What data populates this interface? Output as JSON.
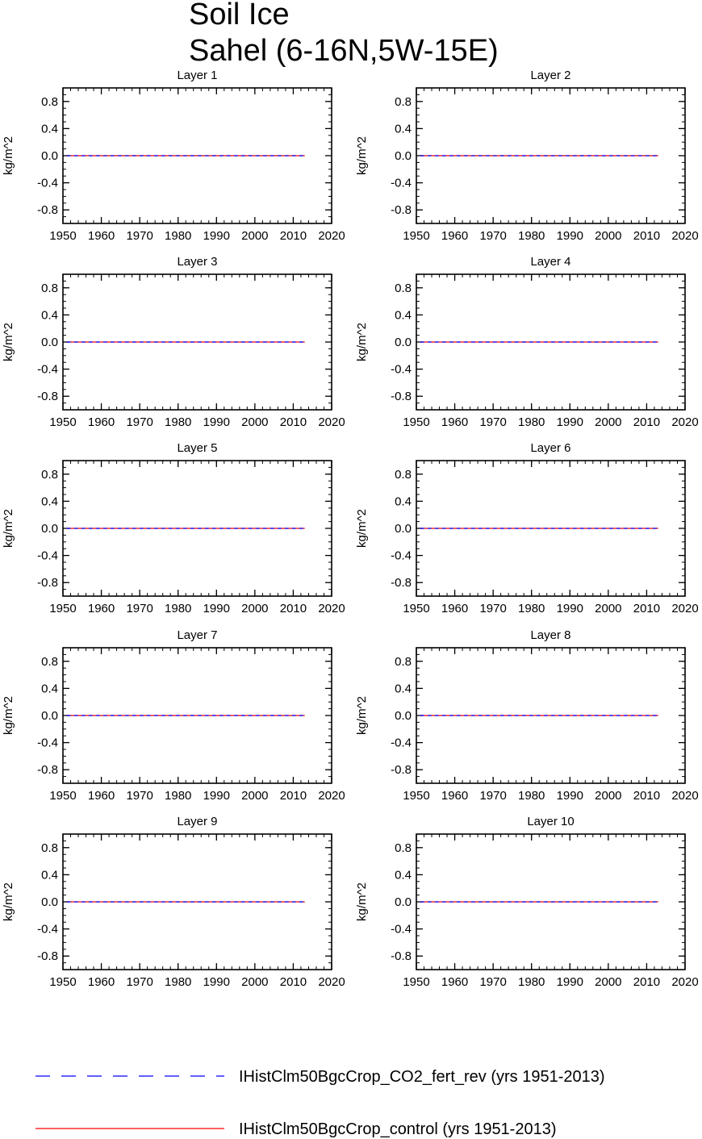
{
  "figure": {
    "title_lines": [
      "Soil Ice",
      "Sahel (6-16N,5W-15E)"
    ]
  },
  "chart_data": [
    {
      "type": "line",
      "title": "Layer 1",
      "xlabel": "",
      "ylabel": "kg/m^2",
      "xlim": [
        1950,
        2020
      ],
      "ylim": [
        -1,
        1
      ],
      "xticks": [
        1950,
        1960,
        1970,
        1980,
        1990,
        2000,
        2010,
        2020
      ],
      "yticks": [
        0.8,
        0.4,
        0.0,
        -0.4,
        -0.8
      ],
      "series": [
        {
          "name": "IHistClm50BgcCrop_CO2_fert_rev (yrs 1951-2013)",
          "color": "#0000ff",
          "style": "dashed",
          "x": [
            1951,
            2013
          ],
          "y": [
            0,
            0
          ]
        },
        {
          "name": "IHistClm50BgcCrop_control (yrs 1951-2013)",
          "color": "#ff0000",
          "style": "solid",
          "x": [
            1951,
            2013
          ],
          "y": [
            0,
            0
          ]
        }
      ]
    },
    {
      "type": "line",
      "title": "Layer 2",
      "xlabel": "",
      "ylabel": "kg/m^2",
      "xlim": [
        1950,
        2020
      ],
      "ylim": [
        -1,
        1
      ],
      "xticks": [
        1950,
        1960,
        1970,
        1980,
        1990,
        2000,
        2010,
        2020
      ],
      "yticks": [
        0.8,
        0.4,
        0.0,
        -0.4,
        -0.8
      ],
      "series": [
        {
          "name": "IHistClm50BgcCrop_CO2_fert_rev (yrs 1951-2013)",
          "color": "#0000ff",
          "style": "dashed",
          "x": [
            1951,
            2013
          ],
          "y": [
            0,
            0
          ]
        },
        {
          "name": "IHistClm50BgcCrop_control (yrs 1951-2013)",
          "color": "#ff0000",
          "style": "solid",
          "x": [
            1951,
            2013
          ],
          "y": [
            0,
            0
          ]
        }
      ]
    },
    {
      "type": "line",
      "title": "Layer 3",
      "xlabel": "",
      "ylabel": "kg/m^2",
      "xlim": [
        1950,
        2020
      ],
      "ylim": [
        -1,
        1
      ],
      "xticks": [
        1950,
        1960,
        1970,
        1980,
        1990,
        2000,
        2010,
        2020
      ],
      "yticks": [
        0.8,
        0.4,
        0.0,
        -0.4,
        -0.8
      ],
      "series": [
        {
          "name": "IHistClm50BgcCrop_CO2_fert_rev (yrs 1951-2013)",
          "color": "#0000ff",
          "style": "dashed",
          "x": [
            1951,
            2013
          ],
          "y": [
            0,
            0
          ]
        },
        {
          "name": "IHistClm50BgcCrop_control (yrs 1951-2013)",
          "color": "#ff0000",
          "style": "solid",
          "x": [
            1951,
            2013
          ],
          "y": [
            0,
            0
          ]
        }
      ]
    },
    {
      "type": "line",
      "title": "Layer 4",
      "xlabel": "",
      "ylabel": "kg/m^2",
      "xlim": [
        1950,
        2020
      ],
      "ylim": [
        -1,
        1
      ],
      "xticks": [
        1950,
        1960,
        1970,
        1980,
        1990,
        2000,
        2010,
        2020
      ],
      "yticks": [
        0.8,
        0.4,
        0.0,
        -0.4,
        -0.8
      ],
      "series": [
        {
          "name": "IHistClm50BgcCrop_CO2_fert_rev (yrs 1951-2013)",
          "color": "#0000ff",
          "style": "dashed",
          "x": [
            1951,
            2013
          ],
          "y": [
            0,
            0
          ]
        },
        {
          "name": "IHistClm50BgcCrop_control (yrs 1951-2013)",
          "color": "#ff0000",
          "style": "solid",
          "x": [
            1951,
            2013
          ],
          "y": [
            0,
            0
          ]
        }
      ]
    },
    {
      "type": "line",
      "title": "Layer 5",
      "xlabel": "",
      "ylabel": "kg/m^2",
      "xlim": [
        1950,
        2020
      ],
      "ylim": [
        -1,
        1
      ],
      "xticks": [
        1950,
        1960,
        1970,
        1980,
        1990,
        2000,
        2010,
        2020
      ],
      "yticks": [
        0.8,
        0.4,
        0.0,
        -0.4,
        -0.8
      ],
      "series": [
        {
          "name": "IHistClm50BgcCrop_CO2_fert_rev (yrs 1951-2013)",
          "color": "#0000ff",
          "style": "dashed",
          "x": [
            1951,
            2013
          ],
          "y": [
            0,
            0
          ]
        },
        {
          "name": "IHistClm50BgcCrop_control (yrs 1951-2013)",
          "color": "#ff0000",
          "style": "solid",
          "x": [
            1951,
            2013
          ],
          "y": [
            0,
            0
          ]
        }
      ]
    },
    {
      "type": "line",
      "title": "Layer 6",
      "xlabel": "",
      "ylabel": "kg/m^2",
      "xlim": [
        1950,
        2020
      ],
      "ylim": [
        -1,
        1
      ],
      "xticks": [
        1950,
        1960,
        1970,
        1980,
        1990,
        2000,
        2010,
        2020
      ],
      "yticks": [
        0.8,
        0.4,
        0.0,
        -0.4,
        -0.8
      ],
      "series": [
        {
          "name": "IHistClm50BgcCrop_CO2_fert_rev (yrs 1951-2013)",
          "color": "#0000ff",
          "style": "dashed",
          "x": [
            1951,
            2013
          ],
          "y": [
            0,
            0
          ]
        },
        {
          "name": "IHistClm50BgcCrop_control (yrs 1951-2013)",
          "color": "#ff0000",
          "style": "solid",
          "x": [
            1951,
            2013
          ],
          "y": [
            0,
            0
          ]
        }
      ]
    },
    {
      "type": "line",
      "title": "Layer 7",
      "xlabel": "",
      "ylabel": "kg/m^2",
      "xlim": [
        1950,
        2020
      ],
      "ylim": [
        -1,
        1
      ],
      "xticks": [
        1950,
        1960,
        1970,
        1980,
        1990,
        2000,
        2010,
        2020
      ],
      "yticks": [
        0.8,
        0.4,
        0.0,
        -0.4,
        -0.8
      ],
      "series": [
        {
          "name": "IHistClm50BgcCrop_CO2_fert_rev (yrs 1951-2013)",
          "color": "#0000ff",
          "style": "dashed",
          "x": [
            1951,
            2013
          ],
          "y": [
            0,
            0
          ]
        },
        {
          "name": "IHistClm50BgcCrop_control (yrs 1951-2013)",
          "color": "#ff0000",
          "style": "solid",
          "x": [
            1951,
            2013
          ],
          "y": [
            0,
            0
          ]
        }
      ]
    },
    {
      "type": "line",
      "title": "Layer 8",
      "xlabel": "",
      "ylabel": "kg/m^2",
      "xlim": [
        1950,
        2020
      ],
      "ylim": [
        -1,
        1
      ],
      "xticks": [
        1950,
        1960,
        1970,
        1980,
        1990,
        2000,
        2010,
        2020
      ],
      "yticks": [
        0.8,
        0.4,
        0.0,
        -0.4,
        -0.8
      ],
      "series": [
        {
          "name": "IHistClm50BgcCrop_CO2_fert_rev (yrs 1951-2013)",
          "color": "#0000ff",
          "style": "dashed",
          "x": [
            1951,
            2013
          ],
          "y": [
            0,
            0
          ]
        },
        {
          "name": "IHistClm50BgcCrop_control (yrs 1951-2013)",
          "color": "#ff0000",
          "style": "solid",
          "x": [
            1951,
            2013
          ],
          "y": [
            0,
            0
          ]
        }
      ]
    },
    {
      "type": "line",
      "title": "Layer 9",
      "xlabel": "",
      "ylabel": "kg/m^2",
      "xlim": [
        1950,
        2020
      ],
      "ylim": [
        -1,
        1
      ],
      "xticks": [
        1950,
        1960,
        1970,
        1980,
        1990,
        2000,
        2010,
        2020
      ],
      "yticks": [
        0.8,
        0.4,
        0.0,
        -0.4,
        -0.8
      ],
      "series": [
        {
          "name": "IHistClm50BgcCrop_CO2_fert_rev (yrs 1951-2013)",
          "color": "#0000ff",
          "style": "dashed",
          "x": [
            1951,
            2013
          ],
          "y": [
            0,
            0
          ]
        },
        {
          "name": "IHistClm50BgcCrop_control (yrs 1951-2013)",
          "color": "#ff0000",
          "style": "solid",
          "x": [
            1951,
            2013
          ],
          "y": [
            0,
            0
          ]
        }
      ]
    },
    {
      "type": "line",
      "title": "Layer 10",
      "xlabel": "",
      "ylabel": "kg/m^2",
      "xlim": [
        1950,
        2020
      ],
      "ylim": [
        -1,
        1
      ],
      "xticks": [
        1950,
        1960,
        1970,
        1980,
        1990,
        2000,
        2010,
        2020
      ],
      "yticks": [
        0.8,
        0.4,
        0.0,
        -0.4,
        -0.8
      ],
      "series": [
        {
          "name": "IHistClm50BgcCrop_CO2_fert_rev (yrs 1951-2013)",
          "color": "#0000ff",
          "style": "dashed",
          "x": [
            1951,
            2013
          ],
          "y": [
            0,
            0
          ]
        },
        {
          "name": "IHistClm50BgcCrop_control (yrs 1951-2013)",
          "color": "#ff0000",
          "style": "solid",
          "x": [
            1951,
            2013
          ],
          "y": [
            0,
            0
          ]
        }
      ]
    }
  ],
  "legend": {
    "placement": "bottom",
    "entries": [
      {
        "label": "IHistClm50BgcCrop_CO2_fert_rev (yrs 1951-2013)",
        "color": "#0000ff",
        "style": "dashed"
      },
      {
        "label": "IHistClm50BgcCrop_control (yrs 1951-2013)",
        "color": "#ff0000",
        "style": "solid"
      }
    ]
  }
}
